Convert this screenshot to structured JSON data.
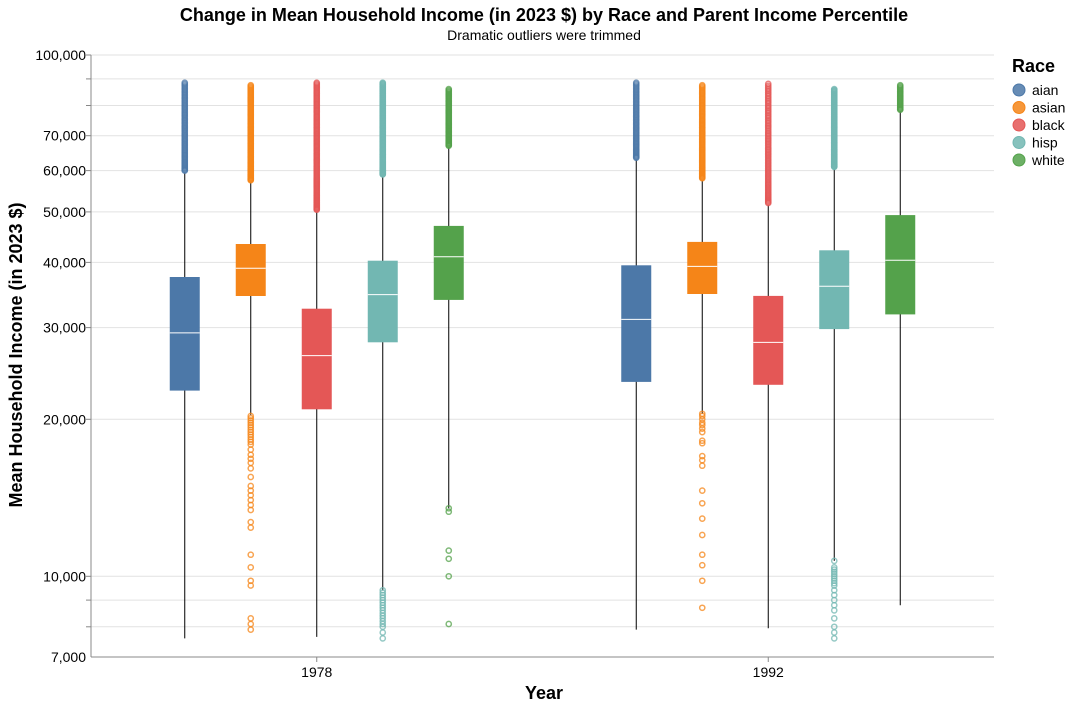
{
  "chart_data": {
    "type": "boxplot",
    "title": "Change in Mean Household Income (in 2023 $) by Race and Parent Income Percentile",
    "subtitle": "Dramatic outliers were trimmed",
    "xlabel": "Year",
    "ylabel": "Mean Household Income (in 2023 $)",
    "y_scale": "log",
    "ylim": [
      7000,
      100000
    ],
    "y_ticks": [
      7000,
      10000,
      20000,
      30000,
      40000,
      50000,
      60000,
      70000,
      100000
    ],
    "y_tick_labels": [
      "7,000",
      "10,000",
      "20,000",
      "30,000",
      "40,000",
      "50,000",
      "60,000",
      "70,000",
      "100,000"
    ],
    "categories": [
      "1978",
      "1992"
    ],
    "legend": {
      "title": "Race",
      "position": "top-right",
      "entries": [
        {
          "label": "aian",
          "color": "#4c78a8"
        },
        {
          "label": "asian",
          "color": "#f58518"
        },
        {
          "label": "black",
          "color": "#e45756"
        },
        {
          "label": "hisp",
          "color": "#72b7b2"
        },
        {
          "label": "white",
          "color": "#54a24b"
        }
      ]
    },
    "series": [
      {
        "name": "aian",
        "boxes": [
          {
            "year": "1978",
            "min": 7600,
            "q1": 22700,
            "median": 29300,
            "q3": 37500,
            "max": 59500,
            "outliers_high": {
              "from": 60000,
              "to": 88500,
              "count": 70
            },
            "outliers_low": []
          },
          {
            "year": "1992",
            "min": 7900,
            "q1": 23600,
            "median": 31100,
            "q3": 39500,
            "max": 63000,
            "outliers_high": {
              "from": 63500,
              "to": 88500,
              "count": 60
            },
            "outliers_low": []
          }
        ]
      },
      {
        "name": "asian",
        "boxes": [
          {
            "year": "1978",
            "min": 20400,
            "q1": 34500,
            "median": 39000,
            "q3": 43400,
            "max": 57000,
            "outliers_high": {
              "from": 57500,
              "to": 87500,
              "count": 110
            },
            "outliers_low": [
              20300,
              20100,
              19900,
              19700,
              19500,
              19300,
              19100,
              18900,
              18700,
              18500,
              18300,
              18100,
              17900,
              17500,
              17100,
              16800,
              16500,
              16100,
              15500,
              14900,
              14600,
              14300,
              14000,
              13700,
              13400,
              12700,
              12400,
              11000,
              10400,
              9800,
              9600,
              8300,
              8100,
              7900
            ]
          },
          {
            "year": "1992",
            "min": 20500,
            "q1": 34800,
            "median": 39300,
            "q3": 43800,
            "max": 57500,
            "outliers_high": {
              "from": 58000,
              "to": 87500,
              "count": 90
            },
            "outliers_low": [
              20500,
              20300,
              20000,
              19700,
              19500,
              19200,
              18900,
              18200,
              18000,
              17000,
              16700,
              16300,
              14600,
              13800,
              12900,
              12000,
              11000,
              10500,
              9800,
              8700
            ]
          }
        ]
      },
      {
        "name": "black",
        "boxes": [
          {
            "year": "1978",
            "min": 7650,
            "q1": 20900,
            "median": 26500,
            "q3": 32600,
            "max": 50000,
            "outliers_high": {
              "from": 50500,
              "to": 88500,
              "count": 120
            },
            "outliers_low": []
          },
          {
            "year": "1992",
            "min": 7950,
            "q1": 23300,
            "median": 28100,
            "q3": 34500,
            "max": 51500,
            "outliers_high": {
              "from": 52000,
              "to": 88000,
              "count": 80
            },
            "outliers_low": []
          }
        ]
      },
      {
        "name": "hisp",
        "boxes": [
          {
            "year": "1978",
            "min": 9400,
            "q1": 28100,
            "median": 34700,
            "q3": 40300,
            "max": 58500,
            "outliers_high": {
              "from": 59000,
              "to": 88500,
              "count": 160
            },
            "outliers_low": [
              9400,
              9300,
              9200,
              9100,
              9000,
              8900,
              8800,
              8700,
              8600,
              8500,
              8400,
              8300,
              8200,
              8100,
              8000,
              7800,
              7600
            ]
          },
          {
            "year": "1992",
            "min": 10700,
            "q1": 29800,
            "median": 36000,
            "q3": 42200,
            "max": 60500,
            "outliers_high": {
              "from": 61000,
              "to": 86000,
              "count": 130
            },
            "outliers_low": [
              10700,
              10400,
              10300,
              10200,
              10100,
              10000,
              9900,
              9800,
              9700,
              9600,
              9400,
              9200,
              9000,
              8800,
              8600,
              8300,
              8000,
              7800,
              7600
            ]
          }
        ]
      },
      {
        "name": "white",
        "boxes": [
          {
            "year": "1978",
            "min": 13500,
            "q1": 33900,
            "median": 41000,
            "q3": 47000,
            "max": 66500,
            "outliers_high": {
              "from": 67000,
              "to": 86000,
              "count": 60
            },
            "outliers_low": [
              13500,
              13300,
              11200,
              10800,
              10000,
              8100
            ]
          },
          {
            "year": "1992",
            "min": 8800,
            "q1": 31800,
            "median": 40400,
            "q3": 49300,
            "max": 78000,
            "outliers_high": {
              "from": 78500,
              "to": 87500,
              "count": 25
            },
            "outliers_low": []
          }
        ]
      }
    ]
  }
}
